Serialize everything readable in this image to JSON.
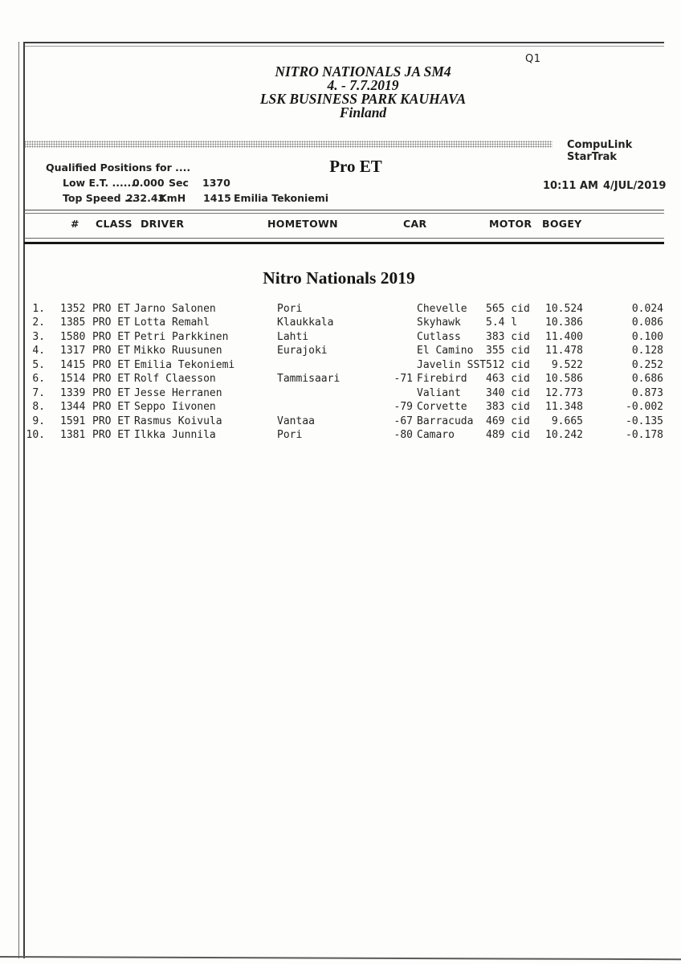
{
  "page": {
    "session": "Q1",
    "title_lines": {
      "event": "NITRO NATIONALS JA SM4",
      "dates": "4. - 7.7.2019",
      "venue": "LSK BUSINESS PARK KAUHAVA",
      "country": "Finland"
    },
    "brand": "CompuLink StarTrak",
    "qualified_label": "Qualified Positions for ....",
    "class_title": "Pro ET",
    "low_et": {
      "label": "Low E.T. .......",
      "value": "0.000",
      "unit": "Sec",
      "car_number": "1370"
    },
    "top_speed": {
      "label": "Top Speed ...",
      "value": "232.43",
      "unit": "KmH",
      "car_number": "1415",
      "driver": "Emilia Tekoniemi"
    },
    "time": "10:11 AM",
    "date": "4/JUL/2019",
    "section_title": "Nitro Nationals 2019",
    "ink_color": "#1f1f1f"
  },
  "table": {
    "headers": {
      "rank": "#",
      "class": "CLASS",
      "driver": "DRIVER",
      "hometown": "HOMETOWN",
      "car": "CAR",
      "motor": "MOTOR",
      "bogey": "BOGEY"
    },
    "rows": [
      {
        "rank": "1.",
        "number": "1352",
        "class": "PRO ET",
        "driver": "Jarno Salonen",
        "hometown": "Pori",
        "car_prefix": "",
        "car": "Chevelle",
        "motor": "565 cid",
        "bogey": "10.524",
        "diff": "0.024"
      },
      {
        "rank": "2.",
        "number": "1385",
        "class": "PRO ET",
        "driver": "Lotta Remahl",
        "hometown": "Klaukkala",
        "car_prefix": "",
        "car": "Skyhawk",
        "motor": "5.4 l",
        "bogey": "10.386",
        "diff": "0.086"
      },
      {
        "rank": "3.",
        "number": "1580",
        "class": "PRO ET",
        "driver": "Petri Parkkinen",
        "hometown": "Lahti",
        "car_prefix": "",
        "car": "Cutlass",
        "motor": "383 cid",
        "bogey": "11.400",
        "diff": "0.100"
      },
      {
        "rank": "4.",
        "number": "1317",
        "class": "PRO ET",
        "driver": "Mikko Ruusunen",
        "hometown": "Eurajoki",
        "car_prefix": "",
        "car": "El Camino",
        "motor": "355 cid",
        "bogey": "11.478",
        "diff": "0.128"
      },
      {
        "rank": "5.",
        "number": "1415",
        "class": "PRO ET",
        "driver": "Emilia Tekoniemi",
        "hometown": "",
        "car_prefix": "",
        "car": "Javelin SST",
        "motor": "512 cid",
        "bogey": "9.522",
        "diff": "0.252"
      },
      {
        "rank": "6.",
        "number": "1514",
        "class": "PRO ET",
        "driver": "Rolf Claesson",
        "hometown": "Tammisaari",
        "car_prefix": "-71",
        "car": "Firebird",
        "motor": "463 cid",
        "bogey": "10.586",
        "diff": "0.686"
      },
      {
        "rank": "7.",
        "number": "1339",
        "class": "PRO ET",
        "driver": "Jesse Herranen",
        "hometown": "",
        "car_prefix": "",
        "car": "Valiant",
        "motor": "340 cid",
        "bogey": "12.773",
        "diff": "0.873"
      },
      {
        "rank": "8.",
        "number": "1344",
        "class": "PRO ET",
        "driver": "Seppo Iivonen",
        "hometown": "",
        "car_prefix": "-79",
        "car": "Corvette",
        "motor": "383 cid",
        "bogey": "11.348",
        "diff": "-0.002"
      },
      {
        "rank": "9.",
        "number": "1591",
        "class": "PRO ET",
        "driver": "Rasmus Koivula",
        "hometown": "Vantaa",
        "car_prefix": "-67",
        "car": "Barracuda",
        "motor": "469 cid",
        "bogey": "9.665",
        "diff": "-0.135"
      },
      {
        "rank": "10.",
        "number": "1381",
        "class": "PRO ET",
        "driver": "Ilkka Junnila",
        "hometown": "Pori",
        "car_prefix": "-80",
        "car": "Camaro",
        "motor": "489 cid",
        "bogey": "10.242",
        "diff": "-0.178"
      }
    ]
  }
}
